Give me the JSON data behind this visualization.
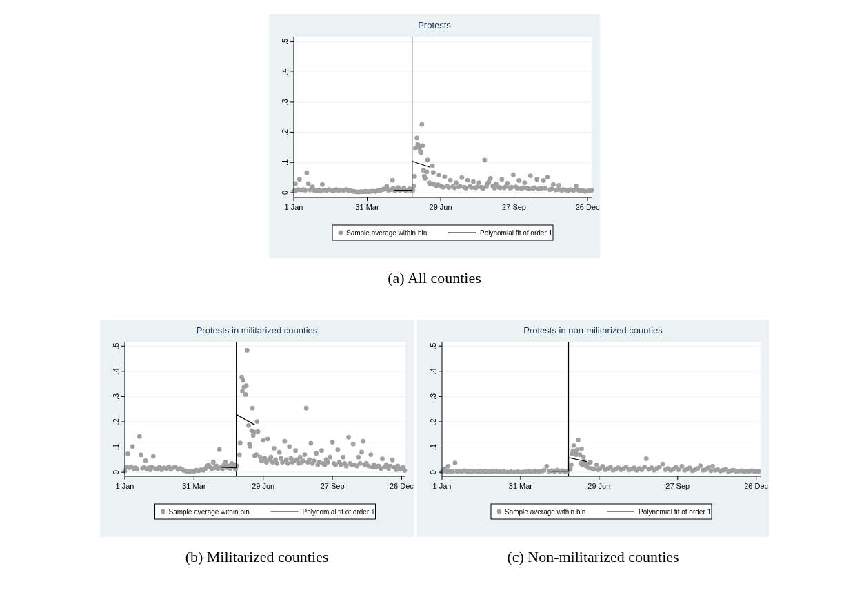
{
  "chart_data": [
    {
      "type": "scatter",
      "title": "Protests",
      "xlim": [
        "--01-01",
        "--12-31"
      ],
      "ylim": [
        -0.016,
        0.517
      ],
      "xticks": [
        {
          "value": "--01-01",
          "label": "1 Jan"
        },
        {
          "value": "--03-31",
          "label": "31 Mar"
        },
        {
          "value": "--06-29",
          "label": "29 Jun"
        },
        {
          "value": "--09-27",
          "label": "27 Sep"
        },
        {
          "value": "--12-26",
          "label": "26 Dec"
        }
      ],
      "yticks": [
        {
          "value": 0,
          "label": "0"
        },
        {
          "value": 0.1,
          "label": ".1"
        },
        {
          "value": 0.2,
          "label": ".2"
        },
        {
          "value": 0.3,
          "label": ".3"
        },
        {
          "value": 0.4,
          "label": ".4"
        },
        {
          "value": 0.5,
          "label": ".5"
        }
      ],
      "grid": "y",
      "legend": "bottom",
      "ref_lines": [
        {
          "axis": "x",
          "value": "--05-25",
          "color": "#000000"
        }
      ],
      "annotations": [
        "(a) All counties"
      ],
      "series": [
        {
          "name": "Sample average within bin",
          "type": "scatter",
          "marker": "circle",
          "color": "#a0a0a0",
          "x": [
            "--01-01",
            "--01-03",
            "--01-04",
            "--01-06",
            "--01-08",
            "--01-10",
            "--01-13",
            "--01-15",
            "--01-17",
            "--01-19",
            "--01-21",
            "--01-24",
            "--01-26",
            "--01-29",
            "--02-01",
            "--02-03",
            "--02-05",
            "--02-07",
            "--02-10",
            "--02-13",
            "--02-16",
            "--02-19",
            "--02-22",
            "--02-25",
            "--02-28",
            "--03-02",
            "--03-05",
            "--03-08",
            "--03-11",
            "--03-14",
            "--03-17",
            "--03-20",
            "--03-23",
            "--03-26",
            "--03-29",
            "--04-01",
            "--04-04",
            "--04-07",
            "--04-10",
            "--04-13",
            "--04-16",
            "--04-19",
            "--04-21",
            "--04-24",
            "--04-26",
            "--04-29",
            "--05-01",
            "--05-02",
            "--05-04",
            "--05-06",
            "--05-08",
            "--05-10",
            "--05-13",
            "--05-15",
            "--05-17",
            "--05-20",
            "--05-22",
            "--05-24",
            "--05-26",
            "--05-27",
            "--05-28",
            "--05-29",
            "--05-31",
            "--06-01",
            "--06-02",
            "--06-03",
            "--06-04",
            "--06-05",
            "--06-06",
            "--06-07",
            "--06-08",
            "--06-09",
            "--06-10",
            "--06-12",
            "--06-13",
            "--06-15",
            "--06-16",
            "--06-18",
            "--06-19",
            "--06-20",
            "--06-21",
            "--06-24",
            "--06-26",
            "--06-27",
            "--06-30",
            "--07-02",
            "--07-04",
            "--07-07",
            "--07-09",
            "--07-11",
            "--07-14",
            "--07-16",
            "--07-18",
            "--07-21",
            "--07-23",
            "--07-25",
            "--07-28",
            "--07-30",
            "--08-01",
            "--08-04",
            "--08-06",
            "--08-08",
            "--08-11",
            "--08-13",
            "--08-15",
            "--08-18",
            "--08-20",
            "--08-22",
            "--08-24",
            "--08-25",
            "--08-27",
            "--08-29",
            "--09-01",
            "--09-03",
            "--09-05",
            "--09-08",
            "--09-10",
            "--09-12",
            "--09-15",
            "--09-17",
            "--09-19",
            "--09-22",
            "--09-24",
            "--09-26",
            "--09-29",
            "--10-01",
            "--10-03",
            "--10-06",
            "--10-08",
            "--10-10",
            "--10-13",
            "--10-15",
            "--10-17",
            "--10-20",
            "--10-22",
            "--10-25",
            "--10-27",
            "--10-30",
            "--11-02",
            "--11-04",
            "--11-07",
            "--11-10",
            "--11-12",
            "--11-14",
            "--11-17",
            "--11-19",
            "--11-21",
            "--11-24",
            "--11-26",
            "--11-29",
            "--12-02",
            "--12-05",
            "--12-08",
            "--12-10",
            "--12-12",
            "--12-15",
            "--12-17",
            "--12-20",
            "--12-23",
            "--12-26",
            "--12-28",
            "--12-31"
          ],
          "values": [
            0.005,
            0.03,
            0.008,
            0.01,
            0.044,
            0.009,
            0.01,
            0.008,
            0.066,
            0.03,
            0.009,
            0.019,
            0.008,
            0.006,
            0.009,
            0.005,
            0.027,
            0.009,
            0.007,
            0.01,
            0.008,
            0.006,
            0.01,
            0.007,
            0.009,
            0.008,
            0.01,
            0.007,
            0.006,
            0.004,
            0.003,
            0.002,
            0.003,
            0.003,
            0.004,
            0.003,
            0.004,
            0.005,
            0.004,
            0.006,
            0.008,
            0.01,
            0.012,
            0.02,
            0.008,
            0.01,
            0.041,
            0.015,
            0.006,
            0.01,
            0.017,
            0.008,
            0.01,
            0.015,
            0.007,
            0.009,
            0.013,
            0.006,
            0.008,
            0.022,
            0.054,
            0.147,
            0.181,
            0.16,
            0.154,
            0.149,
            0.136,
            0.133,
            0.226,
            0.156,
            0.074,
            0.054,
            0.047,
            0.069,
            0.108,
            0.033,
            0.029,
            0.03,
            0.089,
            0.067,
            0.027,
            0.022,
            0.026,
            0.058,
            0.02,
            0.018,
            0.053,
            0.022,
            0.017,
            0.041,
            0.02,
            0.016,
            0.033,
            0.019,
            0.021,
            0.05,
            0.018,
            0.015,
            0.041,
            0.02,
            0.017,
            0.036,
            0.016,
            0.019,
            0.033,
            0.018,
            0.014,
            0.108,
            0.02,
            0.029,
            0.035,
            0.047,
            0.022,
            0.015,
            0.029,
            0.018,
            0.016,
            0.044,
            0.016,
            0.02,
            0.031,
            0.015,
            0.018,
            0.059,
            0.019,
            0.015,
            0.04,
            0.014,
            0.016,
            0.033,
            0.015,
            0.013,
            0.056,
            0.014,
            0.016,
            0.044,
            0.012,
            0.014,
            0.04,
            0.015,
            0.051,
            0.01,
            0.012,
            0.027,
            0.009,
            0.01,
            0.024,
            0.008,
            0.01,
            0.009,
            0.007,
            0.01,
            0.008,
            0.009,
            0.022,
            0.008,
            0.006,
            0.007,
            0.004,
            0.005,
            0.006,
            0.008
          ]
        },
        {
          "name": "Polynomial fit of order 1",
          "type": "line",
          "color": "#000000",
          "x": [
            "--05-03",
            "--05-25",
            "--05-25",
            "--06-16"
          ],
          "values": [
            0.008,
            0.008,
            0.104,
            0.084
          ]
        }
      ]
    },
    {
      "type": "scatter",
      "title": "Protests in militarized counties",
      "xlim": [
        "--01-01",
        "--12-31"
      ],
      "ylim": [
        -0.016,
        0.517
      ],
      "xticks": [
        {
          "value": "--01-01",
          "label": "1 Jan"
        },
        {
          "value": "--03-31",
          "label": "31 Mar"
        },
        {
          "value": "--06-29",
          "label": "29 Jun"
        },
        {
          "value": "--09-27",
          "label": "27 Sep"
        },
        {
          "value": "--12-26",
          "label": "26 Dec"
        }
      ],
      "yticks": [
        {
          "value": 0,
          "label": "0"
        },
        {
          "value": 0.1,
          "label": ".1"
        },
        {
          "value": 0.2,
          "label": ".2"
        },
        {
          "value": 0.3,
          "label": ".3"
        },
        {
          "value": 0.4,
          "label": ".4"
        },
        {
          "value": 0.5,
          "label": ".5"
        }
      ],
      "grid": "y",
      "legend": "bottom",
      "ref_lines": [
        {
          "axis": "x",
          "value": "--05-25",
          "color": "#000000"
        }
      ],
      "annotations": [
        "(b) Militarized counties"
      ],
      "series": [
        {
          "name": "Sample average within bin",
          "type": "scatter",
          "marker": "circle",
          "color": "#a0a0a0",
          "x": [
            "--01-01",
            "--01-03",
            "--01-05",
            "--01-07",
            "--01-09",
            "--01-11",
            "--01-13",
            "--01-15",
            "--01-17",
            "--01-20",
            "--01-22",
            "--01-24",
            "--01-26",
            "--01-28",
            "--01-30",
            "--02-01",
            "--02-03",
            "--02-05",
            "--02-07",
            "--02-09",
            "--02-12",
            "--02-15",
            "--02-18",
            "--02-21",
            "--02-24",
            "--02-27",
            "--03-01",
            "--03-04",
            "--03-07",
            "--03-10",
            "--03-13",
            "--03-16",
            "--03-19",
            "--03-22",
            "--03-25",
            "--03-28",
            "--03-31",
            "--04-03",
            "--04-06",
            "--04-09",
            "--04-12",
            "--04-15",
            "--04-17",
            "--04-19",
            "--04-21",
            "--04-23",
            "--04-25",
            "--04-27",
            "--04-29",
            "--05-01",
            "--05-03",
            "--05-05",
            "--05-07",
            "--05-09",
            "--05-11",
            "--05-13",
            "--05-15",
            "--05-17",
            "--05-19",
            "--05-21",
            "--05-23",
            "--05-24",
            "--05-26",
            "--05-29",
            "--05-30",
            "--06-01",
            "--06-02",
            "--06-03",
            "--06-04",
            "--06-06",
            "--06-07",
            "--06-08",
            "--06-10",
            "--06-11",
            "--06-12",
            "--06-14",
            "--06-15",
            "--06-16",
            "--06-17",
            "--06-18",
            "--06-20",
            "--06-21",
            "--06-22",
            "--06-25",
            "--06-27",
            "--06-29",
            "--07-01",
            "--07-03",
            "--07-05",
            "--07-07",
            "--07-09",
            "--07-11",
            "--07-13",
            "--07-15",
            "--07-17",
            "--07-20",
            "--07-22",
            "--07-24",
            "--07-27",
            "--07-29",
            "--07-31",
            "--08-02",
            "--08-04",
            "--08-06",
            "--08-08",
            "--08-10",
            "--08-12",
            "--08-14",
            "--08-16",
            "--08-18",
            "--08-20",
            "--08-22",
            "--08-24",
            "--08-26",
            "--08-28",
            "--08-30",
            "--09-01",
            "--09-03",
            "--09-06",
            "--09-08",
            "--09-10",
            "--09-13",
            "--09-15",
            "--09-17",
            "--09-19",
            "--09-21",
            "--09-24",
            "--09-27",
            "--09-29",
            "--10-01",
            "--10-04",
            "--10-06",
            "--10-08",
            "--10-11",
            "--10-13",
            "--10-15",
            "--10-18",
            "--10-20",
            "--10-22",
            "--10-24",
            "--10-26",
            "--10-29",
            "--10-31",
            "--11-02",
            "--11-04",
            "--11-06",
            "--11-08",
            "--11-10",
            "--11-13",
            "--11-16",
            "--11-18",
            "--11-20",
            "--11-23",
            "--11-26",
            "--11-29",
            "--12-01",
            "--12-04",
            "--12-06",
            "--12-09",
            "--12-11",
            "--12-14",
            "--12-16",
            "--12-19",
            "--12-21",
            "--12-24",
            "--12-26",
            "--12-28",
            "--12-30"
          ],
          "values": [
            0.005,
            0.02,
            0.073,
            0.018,
            0.022,
            0.102,
            0.015,
            0.018,
            0.012,
            0.142,
            0.069,
            0.016,
            0.02,
            0.046,
            0.012,
            0.018,
            0.01,
            0.02,
            0.063,
            0.015,
            0.012,
            0.02,
            0.01,
            0.018,
            0.014,
            0.022,
            0.012,
            0.018,
            0.02,
            0.012,
            0.015,
            0.01,
            0.006,
            0.004,
            0.003,
            0.005,
            0.004,
            0.008,
            0.006,
            0.01,
            0.008,
            0.015,
            0.025,
            0.03,
            0.02,
            0.012,
            0.04,
            0.018,
            0.025,
            0.015,
            0.09,
            0.02,
            0.012,
            0.03,
            0.04,
            0.018,
            0.025,
            0.015,
            0.035,
            0.02,
            0.03,
            0.012,
            0.025,
            0.069,
            0.116,
            0.377,
            0.321,
            0.364,
            0.337,
            0.308,
            0.343,
            0.483,
            0.185,
            0.112,
            0.103,
            0.165,
            0.254,
            0.146,
            0.159,
            0.066,
            0.07,
            0.201,
            0.161,
            0.06,
            0.045,
            0.126,
            0.055,
            0.04,
            0.132,
            0.05,
            0.06,
            0.04,
            0.095,
            0.05,
            0.035,
            0.079,
            0.055,
            0.04,
            0.123,
            0.05,
            0.035,
            0.102,
            0.055,
            0.04,
            0.045,
            0.086,
            0.05,
            0.035,
            0.06,
            0.04,
            0.045,
            0.07,
            0.254,
            0.04,
            0.05,
            0.115,
            0.035,
            0.045,
            0.075,
            0.03,
            0.04,
            0.086,
            0.035,
            0.03,
            0.05,
            0.04,
            0.06,
            0.119,
            0.035,
            0.03,
            0.089,
            0.04,
            0.03,
            0.06,
            0.035,
            0.025,
            0.139,
            0.035,
            0.03,
            0.112,
            0.03,
            0.025,
            0.06,
            0.035,
            0.08,
            0.123,
            0.03,
            0.035,
            0.025,
            0.07,
            0.02,
            0.03,
            0.02,
            0.025,
            0.015,
            0.053,
            0.02,
            0.03,
            0.015,
            0.025,
            0.049,
            0.02,
            0.01,
            0.025,
            0.012,
            0.015,
            0.02,
            0.007
          ]
        },
        {
          "name": "Polynomial fit of order 1",
          "type": "line",
          "color": "#000000",
          "x": [
            "--05-06",
            "--05-25",
            "--05-25",
            "--06-18"
          ],
          "values": [
            0.02,
            0.018,
            0.229,
            0.188
          ]
        }
      ]
    },
    {
      "type": "scatter",
      "title": "Protests in non-militarized counties",
      "xlim": [
        "--01-01",
        "--12-31"
      ],
      "ylim": [
        -0.016,
        0.517
      ],
      "xticks": [
        {
          "value": "--01-01",
          "label": "1 Jan"
        },
        {
          "value": "--03-31",
          "label": "31 Mar"
        },
        {
          "value": "--06-29",
          "label": "29 Jun"
        },
        {
          "value": "--09-27",
          "label": "27 Sep"
        },
        {
          "value": "--12-26",
          "label": "26 Dec"
        }
      ],
      "yticks": [
        {
          "value": 0,
          "label": "0"
        },
        {
          "value": 0.1,
          "label": ".1"
        },
        {
          "value": 0.2,
          "label": ".2"
        },
        {
          "value": 0.3,
          "label": ".3"
        },
        {
          "value": 0.4,
          "label": ".4"
        },
        {
          "value": 0.5,
          "label": ".5"
        }
      ],
      "grid": "y",
      "legend": "bottom",
      "ref_lines": [
        {
          "axis": "x",
          "value": "--05-25",
          "color": "#000000"
        }
      ],
      "annotations": [
        "(c) Non-militarized counties"
      ],
      "series": [
        {
          "name": "Sample average within bin",
          "type": "scatter",
          "marker": "circle",
          "color": "#a0a0a0",
          "x": [
            "--01-01",
            "--01-04",
            "--01-06",
            "--01-08",
            "--01-10",
            "--01-13",
            "--01-16",
            "--01-18",
            "--01-21",
            "--01-24",
            "--01-27",
            "--01-30",
            "--02-02",
            "--02-05",
            "--02-08",
            "--02-11",
            "--02-14",
            "--02-17",
            "--02-20",
            "--02-23",
            "--02-26",
            "--02-29",
            "--03-04",
            "--03-08",
            "--03-12",
            "--03-16",
            "--03-20",
            "--03-24",
            "--03-28",
            "--04-01",
            "--04-05",
            "--04-09",
            "--04-13",
            "--04-17",
            "--04-21",
            "--04-25",
            "--04-27",
            "--04-30",
            "--05-03",
            "--05-06",
            "--05-09",
            "--05-12",
            "--05-15",
            "--05-18",
            "--05-21",
            "--05-24",
            "--05-27",
            "--05-28",
            "--05-29",
            "--05-30",
            "--05-31",
            "--06-02",
            "--06-03",
            "--06-04",
            "--06-05",
            "--06-07",
            "--06-08",
            "--06-09",
            "--06-10",
            "--06-11",
            "--06-12",
            "--06-14",
            "--06-15",
            "--06-17",
            "--06-19",
            "--06-21",
            "--06-23",
            "--06-26",
            "--06-28",
            "--06-30",
            "--07-03",
            "--07-06",
            "--07-09",
            "--07-12",
            "--07-15",
            "--07-18",
            "--07-21",
            "--07-24",
            "--07-27",
            "--07-30",
            "--08-02",
            "--08-05",
            "--08-08",
            "--08-11",
            "--08-14",
            "--08-17",
            "--08-20",
            "--08-22",
            "--08-25",
            "--08-28",
            "--08-31",
            "--09-03",
            "--09-06",
            "--09-10",
            "--09-13",
            "--09-16",
            "--09-19",
            "--09-22",
            "--09-25",
            "--09-28",
            "--10-02",
            "--10-05",
            "--10-08",
            "--10-11",
            "--10-14",
            "--10-17",
            "--10-20",
            "--10-23",
            "--10-26",
            "--10-29",
            "--11-01",
            "--11-04",
            "--11-06",
            "--11-09",
            "--11-12",
            "--11-15",
            "--11-18",
            "--11-21",
            "--11-24",
            "--11-27",
            "--11-30",
            "--12-03",
            "--12-06",
            "--12-09",
            "--12-12",
            "--12-15",
            "--12-18",
            "--12-21",
            "--12-24",
            "--12-27",
            "--12-29"
          ],
          "values": [
            0.002,
            0.013,
            0.003,
            0.024,
            0.004,
            0.003,
            0.037,
            0.004,
            0.005,
            0.003,
            0.006,
            0.003,
            0.004,
            0.002,
            0.005,
            0.003,
            0.004,
            0.002,
            0.004,
            0.003,
            0.002,
            0.004,
            0.003,
            0.002,
            0.003,
            0.001,
            0.002,
            0.001,
            0.002,
            0.001,
            0.002,
            0.003,
            0.002,
            0.004,
            0.003,
            0.005,
            0.008,
            0.024,
            0.004,
            0.006,
            0.003,
            0.008,
            0.004,
            0.006,
            0.003,
            0.005,
            0.012,
            0.03,
            0.073,
            0.085,
            0.106,
            0.079,
            0.07,
            0.089,
            0.128,
            0.07,
            0.035,
            0.093,
            0.03,
            0.06,
            0.044,
            0.025,
            0.033,
            0.018,
            0.04,
            0.015,
            0.012,
            0.03,
            0.01,
            0.015,
            0.024,
            0.01,
            0.015,
            0.02,
            0.008,
            0.012,
            0.018,
            0.01,
            0.015,
            0.02,
            0.01,
            0.012,
            0.018,
            0.008,
            0.015,
            0.01,
            0.02,
            0.054,
            0.012,
            0.018,
            0.008,
            0.015,
            0.02,
            0.033,
            0.01,
            0.015,
            0.008,
            0.012,
            0.02,
            0.01,
            0.024,
            0.008,
            0.012,
            0.018,
            0.006,
            0.01,
            0.015,
            0.026,
            0.008,
            0.01,
            0.018,
            0.006,
            0.024,
            0.008,
            0.01,
            0.005,
            0.008,
            0.012,
            0.004,
            0.006,
            0.008,
            0.004,
            0.005,
            0.006,
            0.003,
            0.005,
            0.004,
            0.006,
            0.003,
            0.004,
            0.004
          ]
        },
        {
          "name": "Polynomial fit of order 1",
          "type": "line",
          "color": "#000000",
          "x": [
            "--05-03",
            "--05-25",
            "--05-25",
            "--06-15"
          ],
          "values": [
            0.004,
            0.004,
            0.058,
            0.042
          ]
        }
      ]
    }
  ]
}
